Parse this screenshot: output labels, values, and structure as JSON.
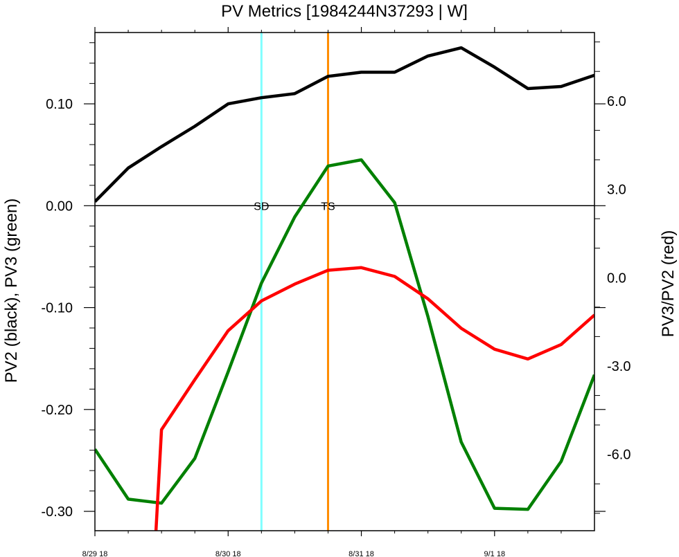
{
  "chart_data": {
    "type": "line",
    "title": "PV Metrics [1984244N37293 | W]",
    "ylabel_left": "PV2 (black), PV3 (green)",
    "ylabel_right": "PV3/PV2 (red)",
    "x_ticks": [
      {
        "x": 0,
        "label": "8/29 18"
      },
      {
        "x": 24,
        "label": "8/30 18"
      },
      {
        "x": 48,
        "label": "8/31 18"
      },
      {
        "x": 72,
        "label": "9/1 18"
      }
    ],
    "xlim": [
      0,
      90
    ],
    "ylim_left": [
      -0.319,
      0.17
    ],
    "ylim_right": [
      -8.59,
      8.32
    ],
    "yticks_left": [
      {
        "v": 0.1,
        "label": "0.10"
      },
      {
        "v": 0.0,
        "label": "0.00"
      },
      {
        "v": -0.1,
        "label": "-0.10"
      },
      {
        "v": -0.2,
        "label": "-0.20"
      },
      {
        "v": -0.3,
        "label": "-0.30"
      }
    ],
    "yticks_right": [
      {
        "v": 6.0,
        "label": "6.0"
      },
      {
        "v": 3.0,
        "label": "3.0"
      },
      {
        "v": 0.0,
        "label": "0.0"
      },
      {
        "v": -3.0,
        "label": "-3.0"
      },
      {
        "v": -6.0,
        "label": "-6.0"
      }
    ],
    "series": [
      {
        "axis": "left",
        "color": "#000000",
        "x": [
          0,
          6,
          12,
          18,
          24,
          30,
          36,
          42,
          48,
          54,
          60,
          66,
          72,
          78,
          84,
          90
        ],
        "values": [
          0.004,
          0.037,
          0.058,
          0.078,
          0.1,
          0.106,
          0.11,
          0.127,
          0.131,
          0.131,
          0.147,
          0.155,
          0.136,
          0.115,
          0.117,
          0.128
        ]
      },
      {
        "axis": "left",
        "color": "#008000",
        "x": [
          0,
          6,
          12,
          18,
          24,
          30,
          36,
          42,
          48,
          54,
          60,
          66,
          72,
          78,
          84,
          90
        ],
        "values": [
          -0.239,
          -0.288,
          -0.292,
          -0.248,
          -0.163,
          -0.076,
          -0.011,
          0.039,
          0.045,
          0.003,
          -0.109,
          -0.232,
          -0.297,
          -0.298,
          -0.251,
          -0.166
        ]
      },
      {
        "axis": "right",
        "color": "#ff0000",
        "x": [
          11,
          12,
          18,
          24,
          30,
          36,
          42,
          48,
          54,
          60,
          66,
          72,
          78,
          84,
          90
        ],
        "values": [
          -8.6,
          -5.16,
          -3.46,
          -1.8,
          -0.79,
          -0.22,
          0.25,
          0.34,
          0.04,
          -0.72,
          -1.72,
          -2.43,
          -2.76,
          -2.27,
          -1.27
        ]
      }
    ],
    "vlines": [
      {
        "x": 30,
        "color": "#7fffff",
        "label": "SD"
      },
      {
        "x": 42,
        "color": "#ff8c00",
        "label": "TS"
      }
    ],
    "zero_line": 0
  }
}
